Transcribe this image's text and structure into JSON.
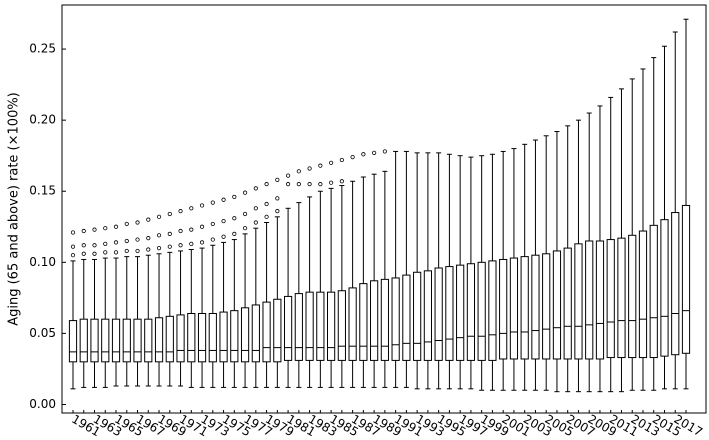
{
  "chart_data": {
    "type": "box",
    "y_label": "Aging (65 and above) rate (×100%)",
    "categories": [
      null,
      "1961",
      null,
      "1963",
      null,
      "1965",
      null,
      "1967",
      null,
      "1969",
      null,
      "1971",
      null,
      "1973",
      null,
      "1975",
      null,
      "1977",
      null,
      "1979",
      null,
      "1981",
      null,
      "1983",
      null,
      "1985",
      null,
      "1987",
      null,
      "1989",
      null,
      "1991",
      null,
      "1993",
      null,
      "1995",
      null,
      "1997",
      null,
      "1999",
      null,
      "2001",
      null,
      "2003",
      null,
      "2005",
      null,
      "2007",
      null,
      "2009",
      null,
      "2011",
      null,
      "2013",
      null,
      "2015",
      null,
      "2017"
    ],
    "whisker_low": [
      0.011,
      0.012,
      0.012,
      0.012,
      0.013,
      0.013,
      0.013,
      0.013,
      0.013,
      0.013,
      0.013,
      0.012,
      0.012,
      0.012,
      0.012,
      0.012,
      0.012,
      0.012,
      0.012,
      0.012,
      0.012,
      0.012,
      0.012,
      0.012,
      0.012,
      0.012,
      0.012,
      0.012,
      0.012,
      0.012,
      0.012,
      0.012,
      0.011,
      0.011,
      0.011,
      0.011,
      0.011,
      0.011,
      0.01,
      0.01,
      0.01,
      0.01,
      0.01,
      0.01,
      0.01,
      0.009,
      0.009,
      0.009,
      0.009,
      0.009,
      0.009,
      0.009,
      0.01,
      0.01,
      0.01,
      0.011,
      0.011,
      0.011
    ],
    "q1": [
      0.03,
      0.03,
      0.03,
      0.03,
      0.03,
      0.03,
      0.03,
      0.03,
      0.03,
      0.03,
      0.03,
      0.03,
      0.03,
      0.03,
      0.03,
      0.03,
      0.03,
      0.03,
      0.03,
      0.03,
      0.031,
      0.031,
      0.031,
      0.031,
      0.031,
      0.031,
      0.031,
      0.031,
      0.031,
      0.031,
      0.031,
      0.031,
      0.031,
      0.031,
      0.031,
      0.031,
      0.031,
      0.031,
      0.031,
      0.031,
      0.032,
      0.032,
      0.032,
      0.032,
      0.032,
      0.032,
      0.032,
      0.032,
      0.032,
      0.032,
      0.033,
      0.033,
      0.033,
      0.033,
      0.033,
      0.034,
      0.035,
      0.036
    ],
    "median": [
      0.037,
      0.037,
      0.037,
      0.037,
      0.037,
      0.037,
      0.037,
      0.037,
      0.037,
      0.037,
      0.038,
      0.038,
      0.038,
      0.038,
      0.038,
      0.038,
      0.038,
      0.038,
      0.04,
      0.04,
      0.04,
      0.04,
      0.04,
      0.04,
      0.04,
      0.041,
      0.041,
      0.041,
      0.041,
      0.041,
      0.042,
      0.043,
      0.043,
      0.044,
      0.045,
      0.046,
      0.047,
      0.048,
      0.048,
      0.049,
      0.05,
      0.051,
      0.051,
      0.052,
      0.053,
      0.054,
      0.055,
      0.055,
      0.056,
      0.057,
      0.058,
      0.059,
      0.059,
      0.06,
      0.061,
      0.062,
      0.064,
      0.066
    ],
    "q3": [
      0.059,
      0.06,
      0.06,
      0.06,
      0.06,
      0.06,
      0.06,
      0.06,
      0.061,
      0.062,
      0.063,
      0.064,
      0.064,
      0.064,
      0.065,
      0.066,
      0.068,
      0.07,
      0.072,
      0.074,
      0.076,
      0.078,
      0.079,
      0.079,
      0.079,
      0.08,
      0.082,
      0.085,
      0.087,
      0.088,
      0.089,
      0.091,
      0.093,
      0.094,
      0.096,
      0.097,
      0.098,
      0.099,
      0.1,
      0.101,
      0.102,
      0.103,
      0.104,
      0.105,
      0.106,
      0.108,
      0.11,
      0.113,
      0.115,
      0.115,
      0.116,
      0.117,
      0.119,
      0.122,
      0.126,
      0.13,
      0.135,
      0.14
    ],
    "whisker_high": [
      0.101,
      0.102,
      0.102,
      0.103,
      0.103,
      0.104,
      0.104,
      0.105,
      0.106,
      0.107,
      0.108,
      0.109,
      0.11,
      0.112,
      0.114,
      0.116,
      0.12,
      0.124,
      0.128,
      0.132,
      0.138,
      0.142,
      0.146,
      0.15,
      0.152,
      0.154,
      0.157,
      0.16,
      0.162,
      0.164,
      0.178,
      0.178,
      0.177,
      0.177,
      0.177,
      0.176,
      0.175,
      0.174,
      0.175,
      0.176,
      0.178,
      0.18,
      0.183,
      0.186,
      0.189,
      0.192,
      0.196,
      0.2,
      0.205,
      0.21,
      0.216,
      0.222,
      0.229,
      0.236,
      0.244,
      0.252,
      0.262,
      0.271
    ],
    "outliers": [
      [
        0.121,
        0.111,
        0.105
      ],
      [
        0.122,
        0.112,
        0.106
      ],
      [
        0.123,
        0.112,
        0.106
      ],
      [
        0.124,
        0.113,
        0.107
      ],
      [
        0.125,
        0.114,
        0.107
      ],
      [
        0.127,
        0.115,
        0.108
      ],
      [
        0.128,
        0.116,
        0.108
      ],
      [
        0.13,
        0.117,
        0.109
      ],
      [
        0.132,
        0.119,
        0.11
      ],
      [
        0.134,
        0.12,
        0.111
      ],
      [
        0.136,
        0.122,
        0.112
      ],
      [
        0.138,
        0.123,
        0.113
      ],
      [
        0.14,
        0.125,
        0.114
      ],
      [
        0.142,
        0.127,
        0.116
      ],
      [
        0.144,
        0.129,
        0.118
      ],
      [
        0.146,
        0.131,
        0.12
      ],
      [
        0.149,
        0.134,
        0.124
      ],
      [
        0.152,
        0.138,
        0.128
      ],
      [
        0.155,
        0.141,
        0.132
      ],
      [
        0.158,
        0.145,
        0.136
      ],
      [
        0.161,
        0.155
      ],
      [
        0.164,
        0.155
      ],
      [
        0.166,
        0.155
      ],
      [
        0.168,
        0.155
      ],
      [
        0.17,
        0.156
      ],
      [
        0.172,
        0.157
      ],
      [
        0.174
      ],
      [
        0.176
      ],
      [
        0.177
      ],
      [
        0.178
      ],
      [],
      [],
      [],
      [],
      [],
      [],
      [],
      [],
      [],
      [],
      [],
      [],
      [],
      [],
      [],
      [],
      [],
      [],
      [],
      [],
      [],
      [],
      [],
      [],
      [],
      [],
      [],
      []
    ],
    "color": "#000000",
    "ylim": [
      -0.006,
      0.281
    ],
    "yticks": [
      {
        "value": 0,
        "label": "0.00"
      },
      {
        "value": 0.05,
        "label": "0.05"
      },
      {
        "value": 0.1,
        "label": "0.10"
      },
      {
        "value": 0.15,
        "label": "0.15"
      },
      {
        "value": 0.2,
        "label": "0.20"
      },
      {
        "value": 0.25,
        "label": "0.25"
      }
    ]
  }
}
